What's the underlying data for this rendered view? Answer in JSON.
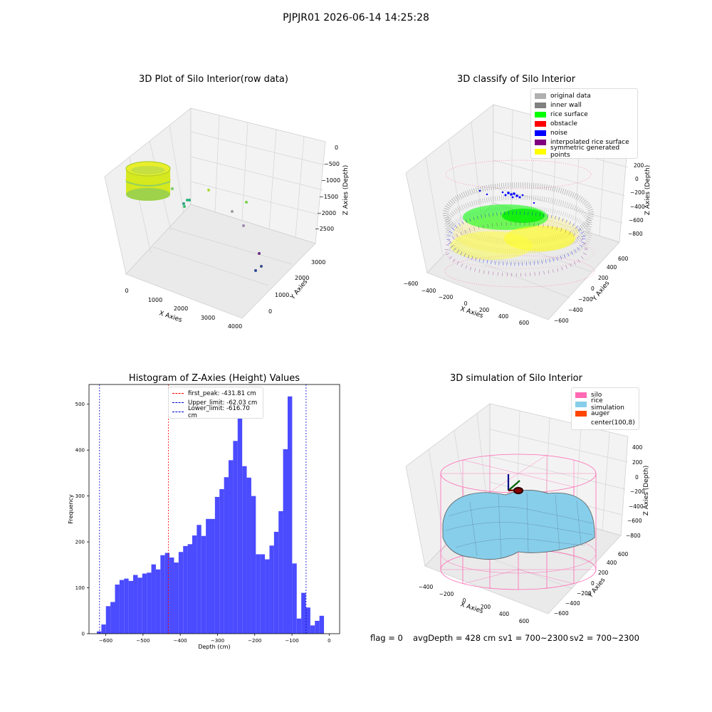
{
  "suptitle": "PJPJR01 2026-06-14 14:25:28",
  "colors": {
    "histogram_bar": "#4b4bff",
    "first_peak": "#ff0000",
    "limits": "#0000cc",
    "silo": "#ff69b4",
    "rice_simulation": "#87ceeb",
    "auger": "#ff4500"
  },
  "chart_data": [
    {
      "type": "scatter",
      "title": "3D Plot of Silo Interior(row data)",
      "projection": "3d",
      "xlabel": "X Axies",
      "ylabel": "Y Axies",
      "zlabel": "Z Axies (Depth)",
      "x_ticks": [
        "0",
        "1000",
        "2000",
        "3000",
        "4000"
      ],
      "y_ticks": [
        "0",
        "1000",
        "2000",
        "3000"
      ],
      "z_ticks": [
        "0",
        "−500",
        "−1000",
        "−1500",
        "−2000",
        "−2500"
      ]
    },
    {
      "type": "scatter",
      "title": "3D classify of Silo Interior",
      "projection": "3d",
      "xlabel": "X Axies",
      "ylabel": "Y Axies",
      "zlabel": "Z Axies (Depth)",
      "x_ticks": [
        "−600",
        "−400",
        "−200",
        "0",
        "200",
        "400",
        "600"
      ],
      "y_ticks": [
        "−600",
        "−400",
        "−200",
        "0",
        "200",
        "400",
        "600"
      ],
      "z_ticks": [
        "200",
        "0",
        "−200",
        "−400",
        "−600",
        "−800"
      ],
      "legend": [
        {
          "label": "original data",
          "color": "#b0b0b0"
        },
        {
          "label": "inner wall",
          "color": "#808080"
        },
        {
          "label": "rice surface",
          "color": "#00ff00"
        },
        {
          "label": "obstacle",
          "color": "#ff0000"
        },
        {
          "label": "noise",
          "color": "#0000ff"
        },
        {
          "label": "interpolated rice surface",
          "color": "#800080"
        },
        {
          "label": "symmetric generated points",
          "color": "#ffff00"
        }
      ]
    },
    {
      "type": "bar",
      "title": "Histogram of Z-Axies (Height) Values",
      "xlabel": "Depth (cm)",
      "ylabel": "Frequency",
      "xlim": [
        -645,
        28
      ],
      "ylim": [
        0,
        543
      ],
      "x_ticks": [
        -600,
        -500,
        -400,
        -300,
        -200,
        -100,
        0
      ],
      "y_ticks": [
        0,
        100,
        200,
        300,
        400,
        500
      ],
      "bins_start": -624,
      "bin_width": 12.2,
      "values": [
        5,
        20,
        60,
        69,
        107,
        117,
        120,
        115,
        128,
        122,
        131,
        133,
        151,
        140,
        171,
        176,
        166,
        155,
        178,
        191,
        195,
        214,
        237,
        213,
        250,
        250,
        298,
        315,
        341,
        378,
        420,
        470,
        365,
        340,
        300,
        173,
        173,
        162,
        192,
        222,
        267,
        402,
        517,
        153,
        33,
        89,
        57,
        18,
        28,
        39
      ],
      "lines": [
        {
          "label": "first_peak: -431.81 cm",
          "x": -431.81,
          "color": "#ff0000"
        },
        {
          "label": "Upper_limit: -62.03 cm",
          "x": -62.03,
          "color": "#0000cc"
        },
        {
          "label": "Lower_limit: -616.70 cm",
          "x": -616.7,
          "color": "#0000cc"
        }
      ],
      "legend_position": "upper-center"
    },
    {
      "type": "area",
      "title": "3D simulation of Silo Interior",
      "projection": "3d",
      "xlabel": "X Axies",
      "ylabel": "Y Axies",
      "zlabel": "Z Axies (Depth)",
      "x_ticks": [
        "−400",
        "−200",
        "0",
        "200",
        "400",
        "600"
      ],
      "y_ticks": [
        "−600",
        "−400",
        "−200",
        "0",
        "200",
        "400",
        "600"
      ],
      "z_ticks": [
        "400",
        "200",
        "0",
        "−200",
        "−400",
        "−600",
        "−800"
      ],
      "legend": [
        {
          "label": "silo",
          "color": "#ff69b4"
        },
        {
          "label": "rice simulation",
          "color": "#87ceeb"
        },
        {
          "label": "auger",
          "color": "#ff4500"
        },
        {
          "label": "center(100,8)",
          "color": "none"
        }
      ]
    }
  ],
  "footer": {
    "flag": "flag = 0",
    "avg_depth": "avgDepth = 428 cm",
    "sv1": "sv1 = 700~2300",
    "sv2": "sv2 = 700~2300"
  }
}
